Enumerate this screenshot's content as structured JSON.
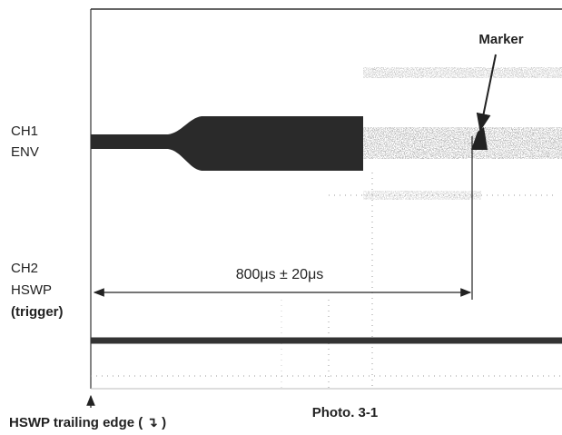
{
  "photo": {
    "marker": "Marker",
    "ch1": [
      "CH1",
      "ENV"
    ],
    "ch2": [
      "CH2",
      "HSWP",
      "(trigger)"
    ],
    "interval": "800μs ± 20μs",
    "trigger_note": "HSWP trailing edge ( ↴ )",
    "caption": "Photo. 3-1"
  }
}
